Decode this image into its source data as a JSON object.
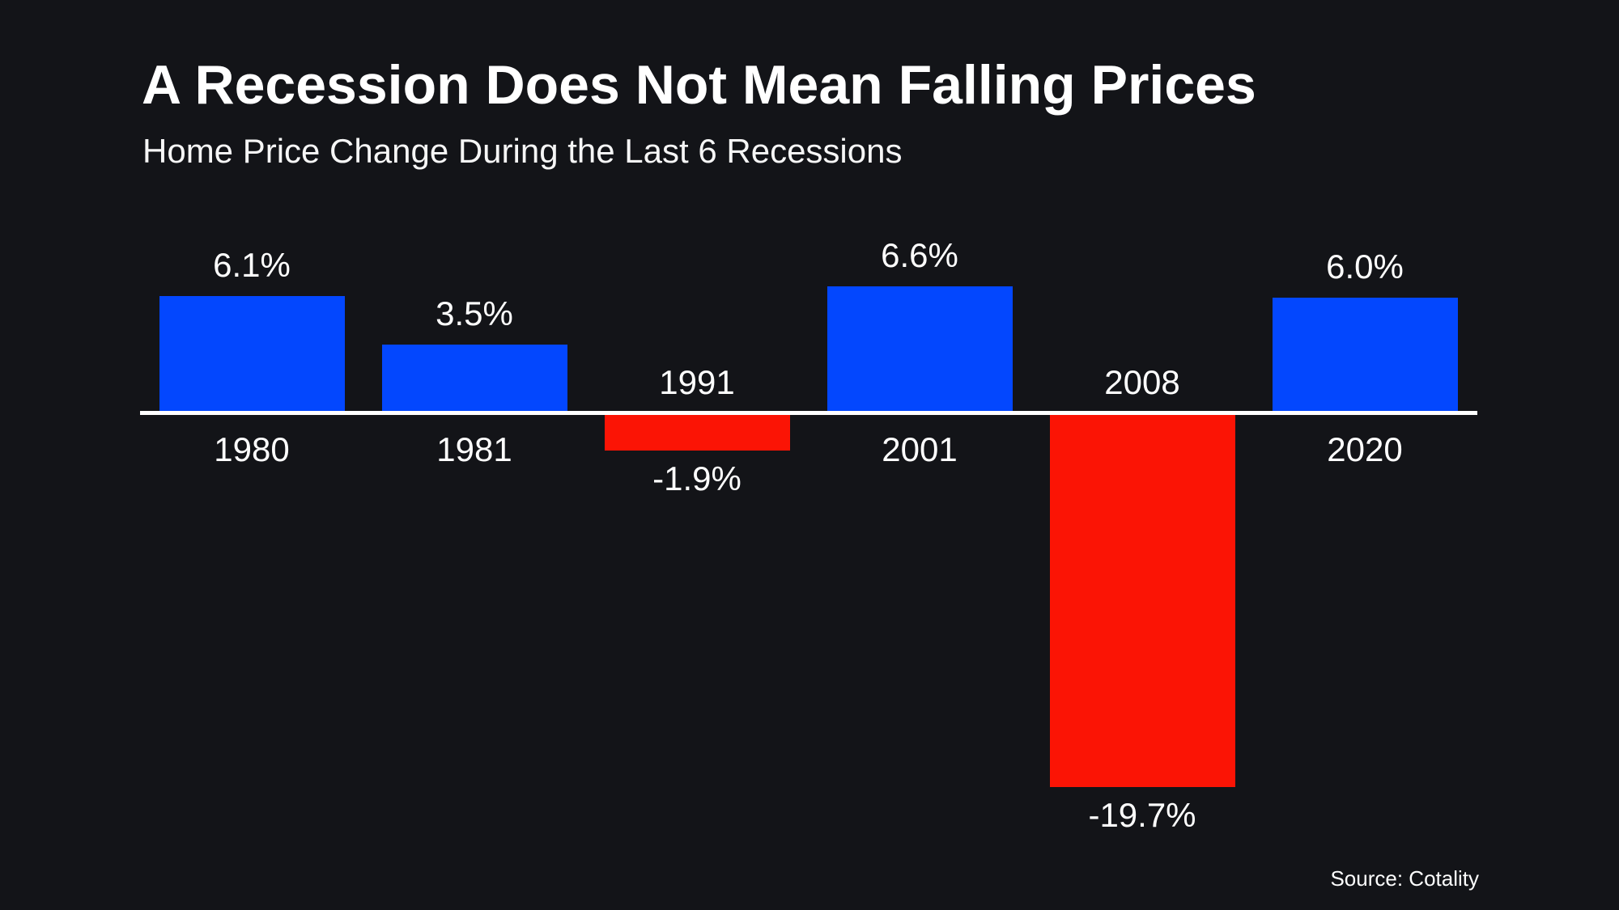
{
  "chart": {
    "title": "A Recession Does Not Mean Falling Prices",
    "subtitle": "Home Price Change During the Last 6 Recessions",
    "source": "Source: Cotality"
  },
  "colors": {
    "background": "#131418",
    "positive_bar": "#0347FE",
    "negative_bar": "#FB1405",
    "axis_line": "#FFFFFF",
    "text": "#FFFFFF"
  },
  "chart_data": {
    "type": "bar",
    "title": "A Recession Does Not Mean Falling Prices",
    "subtitle": "Home Price Change During the Last 6 Recessions",
    "categories": [
      "1980",
      "1981",
      "1991",
      "2001",
      "2008",
      "2020"
    ],
    "values": [
      6.1,
      3.5,
      -1.9,
      6.6,
      -19.7,
      6.0
    ],
    "value_labels": [
      "6.1%",
      "3.5%",
      "-1.9%",
      "6.6%",
      "-19.7%",
      "6.0%"
    ],
    "xlabel": "",
    "ylabel": "",
    "ylim": [
      -21,
      8
    ],
    "grid": false,
    "legend": false,
    "baseline": 0,
    "positive_color": "#0347FE",
    "negative_color": "#FB1405",
    "annotation_source": "Source: Cotality"
  }
}
